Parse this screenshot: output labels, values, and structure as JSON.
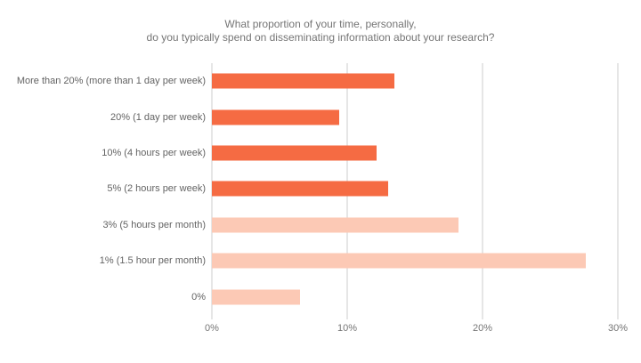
{
  "title": {
    "line1": "What proportion of your time, personally,",
    "line2": "do you typically spend on disseminating information about your research?"
  },
  "chart_data": {
    "type": "bar",
    "orientation": "horizontal",
    "title": "What proportion of your time, personally, do you typically spend on disseminating information about your research?",
    "categories": [
      "More than 20% (more than 1 day per week)",
      "20% (1 day per week)",
      "10% (4 hours per week)",
      "5% (2 hours per week)",
      "3% (5 hours per month)",
      "1% (1.5 hour per month)",
      "0%"
    ],
    "values": [
      13.5,
      9.4,
      12.2,
      13,
      18.2,
      27.6,
      6.5
    ],
    "bar_colors": [
      "#f56b43",
      "#f56b43",
      "#f56b43",
      "#f56b43",
      "#fcc9b5",
      "#fcc9b5",
      "#fcc9b5"
    ],
    "x_ticks": [
      "0%",
      "10%",
      "20%",
      "30%"
    ],
    "xlim": [
      0,
      30
    ],
    "xlabel": "",
    "ylabel": "",
    "grid": true,
    "legend": "none"
  },
  "colors": {
    "bar_dark": "#f56b43",
    "bar_light": "#fcc9b5",
    "gridline": "#cccccc",
    "title_text": "#757575",
    "axis_text": "#757575",
    "category_text": "#636363",
    "background": "#ffffff"
  }
}
